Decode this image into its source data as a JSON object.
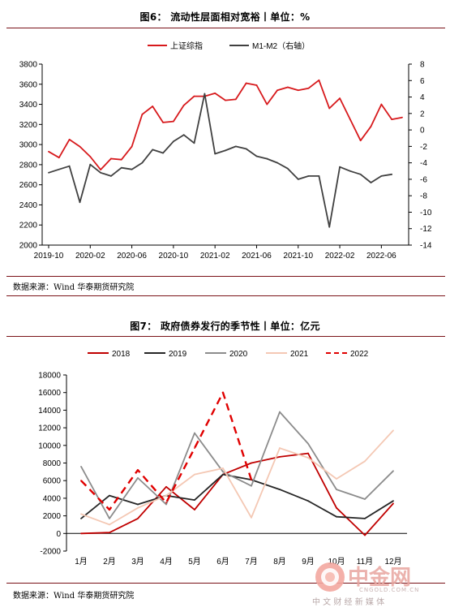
{
  "figures": [
    {
      "caption": "图6：    流动性层面相对宽裕丨单位：%",
      "source": "数据来源：Wind  华泰期货研究院"
    },
    {
      "caption": "图7：    政府债券发行的季节性丨单位：亿元",
      "source": "数据来源：Wind  华泰期货研究院"
    }
  ],
  "chart_data": [
    {
      "type": "line",
      "title": "",
      "x_tick_labels": [
        "2019-10",
        "2020-02",
        "2020-06",
        "2020-10",
        "2021-02",
        "2021-06",
        "2021-10",
        "2022-02",
        "2022-06"
      ],
      "ylim": [
        2000,
        3800
      ],
      "y_ticks": [
        2000,
        2200,
        2400,
        2600,
        2800,
        3000,
        3200,
        3400,
        3600,
        3800
      ],
      "y2lim": [
        -14,
        8
      ],
      "y2_ticks": [
        -14,
        -12,
        -10,
        -8,
        -6,
        -4,
        -2,
        0,
        2,
        4,
        6,
        8
      ],
      "legend_position": "top",
      "series": [
        {
          "name": "上证综指",
          "axis": "left",
          "color": "#d7191c",
          "values": [
            2930,
            2870,
            3050,
            2980,
            2880,
            2750,
            2860,
            2850,
            2980,
            3300,
            3380,
            3220,
            3230,
            3390,
            3480,
            3480,
            3510,
            3440,
            3450,
            3610,
            3590,
            3400,
            3540,
            3570,
            3540,
            3560,
            3640,
            3360,
            3460,
            3250,
            3040,
            3180,
            3400,
            3250,
            3270
          ]
        },
        {
          "name": "M1-M2（右轴）",
          "axis": "right",
          "color": "#404040",
          "values": [
            -5.2,
            -4.8,
            -4.4,
            -8.8,
            -4.2,
            -5.2,
            -5.6,
            -4.6,
            -4.8,
            -4.0,
            -2.4,
            -2.8,
            -1.4,
            -0.6,
            -1.6,
            4.4,
            -2.9,
            -2.5,
            -2.0,
            -2.3,
            -3.2,
            -3.5,
            -4.0,
            -4.7,
            -6.0,
            -5.6,
            -5.6,
            -11.8,
            -4.5,
            -5.0,
            -5.4,
            -6.4,
            -5.6,
            -5.4,
            null
          ]
        }
      ]
    },
    {
      "type": "line",
      "title": "",
      "categories": [
        "1月",
        "2月",
        "3月",
        "4月",
        "5月",
        "6月",
        "7月",
        "8月",
        "9月",
        "10月",
        "11月",
        "12月"
      ],
      "ylim": [
        -2000,
        18000
      ],
      "y_ticks": [
        -2000,
        0,
        2000,
        4000,
        6000,
        8000,
        10000,
        12000,
        14000,
        16000,
        18000
      ],
      "legend_position": "top",
      "series": [
        {
          "name": "2018",
          "color": "#c00000",
          "dash": false,
          "values": [
            0,
            100,
            1700,
            5300,
            2700,
            6700,
            8000,
            8700,
            9100,
            2900,
            -200,
            3400
          ]
        },
        {
          "name": "2019",
          "color": "#262626",
          "dash": false,
          "values": [
            1700,
            4300,
            3300,
            4300,
            3800,
            6700,
            6100,
            5000,
            3700,
            1900,
            1700,
            3700
          ]
        },
        {
          "name": "2020",
          "color": "#8c8c8c",
          "dash": false,
          "values": [
            7600,
            1700,
            6300,
            3300,
            11400,
            7000,
            5400,
            13800,
            10200,
            5000,
            3900,
            7100
          ]
        },
        {
          "name": "2021",
          "color": "#f4c8b4",
          "dash": false,
          "values": [
            2200,
            1000,
            2900,
            4300,
            6700,
            7400,
            1800,
            9700,
            8600,
            6200,
            8200,
            11700
          ]
        },
        {
          "name": "2022",
          "color": "#e00000",
          "dash": true,
          "values": [
            6000,
            2700,
            7200,
            3500,
            9700,
            16000,
            6100,
            null,
            null,
            null,
            null,
            null
          ]
        }
      ]
    }
  ],
  "watermark": {
    "logo_text": "中金网",
    "domain": "CNGOLD.COM.CN",
    "slogan": "中 文 财 经 新 媒 体"
  }
}
